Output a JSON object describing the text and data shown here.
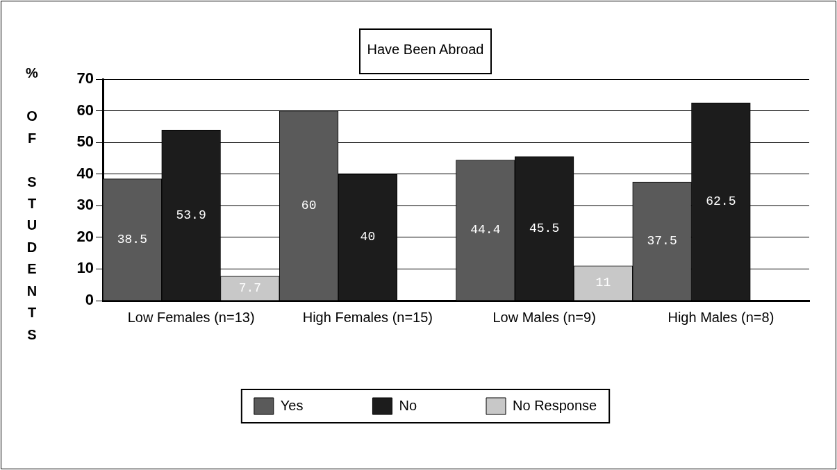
{
  "chart_data": {
    "type": "bar",
    "title": "Have Been Abroad",
    "ylabel": "% OF STUDENTS",
    "categories": [
      "Low Females (n=13)",
      "High Females (n=15)",
      "Low Males (n=9)",
      "High Males (n=8)"
    ],
    "series": [
      {
        "name": "Yes",
        "color": "#5a5a5a",
        "values": [
          38.5,
          60,
          44.4,
          37.5
        ],
        "value_labels": [
          "38.5",
          "60",
          "44.4",
          "37.5"
        ]
      },
      {
        "name": "No",
        "color": "#1c1c1c",
        "values": [
          53.9,
          40,
          45.5,
          62.5
        ],
        "value_labels": [
          "53.9",
          "40",
          "45.5",
          "62.5"
        ]
      },
      {
        "name": "No Response",
        "color": "#c8c8c8",
        "values": [
          7.7,
          0,
          11,
          0
        ],
        "value_labels": [
          "7.7",
          null,
          "11",
          null
        ]
      }
    ],
    "ylim": [
      0,
      70
    ],
    "yticks": [
      0,
      10,
      20,
      30,
      40,
      50,
      60,
      70
    ],
    "grid": "y",
    "legend": "bottom"
  }
}
